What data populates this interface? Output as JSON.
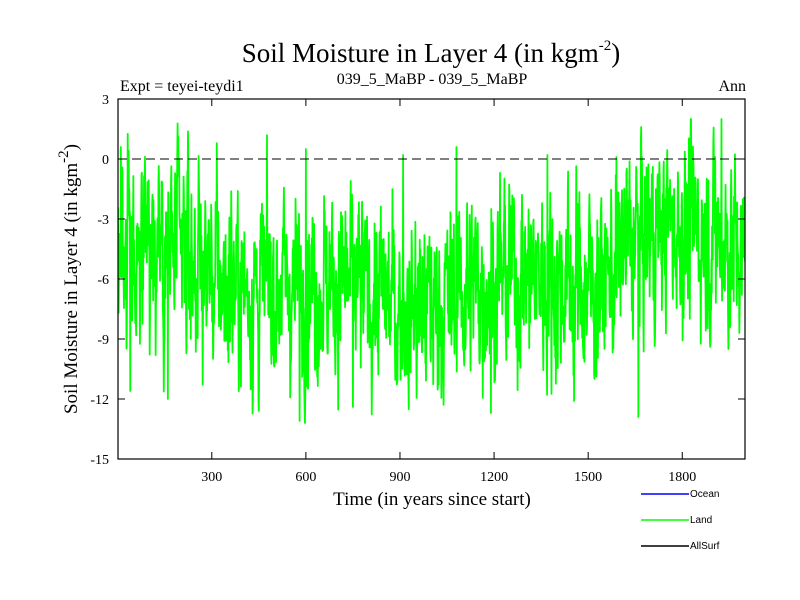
{
  "chart_data": {
    "type": "line",
    "title": "Soil Moisture in Layer 4 (in kgm",
    "title_sup": "-2",
    "title_close": ")",
    "subtitle_left": "Expt = teyei-teydi1",
    "subtitle_center": "039_5_MaBP - 039_5_MaBP",
    "subtitle_right": "Ann",
    "xlabel": "Time (in years since start)",
    "ylabel": "Soil Moisture in Layer 4 (in kgm",
    "ylabel_sup": "-2",
    "ylabel_close": ")",
    "xlim": [
      1,
      2000
    ],
    "ylim": [
      -15,
      3
    ],
    "xticks": [
      300,
      600,
      900,
      1200,
      1500,
      1800
    ],
    "yticks": [
      3,
      0,
      -3,
      -6,
      -9,
      -12,
      -15
    ],
    "zero_line": 0,
    "series": [
      {
        "name": "Land",
        "color": "#00ff00",
        "n_points": 2000,
        "generator": {
          "mean": -6.0,
          "amplitude": 2.6,
          "min": -13.2,
          "max": 2.0,
          "seed": 39
        },
        "anchors": [
          {
            "x": 10,
            "y": 0.6
          },
          {
            "x": 40,
            "y": -11.6
          },
          {
            "x": 160,
            "y": -12.0
          },
          {
            "x": 450,
            "y": -12.6
          },
          {
            "x": 580,
            "y": -13.1
          },
          {
            "x": 600,
            "y": 0.5
          },
          {
            "x": 750,
            "y": -12.4
          },
          {
            "x": 910,
            "y": 0.2
          },
          {
            "x": 1080,
            "y": 0.6
          },
          {
            "x": 1190,
            "y": -12.7
          },
          {
            "x": 1370,
            "y": 0.2
          },
          {
            "x": 1455,
            "y": -12.1
          },
          {
            "x": 1590,
            "y": 0.1
          },
          {
            "x": 1660,
            "y": -12.9
          },
          {
            "x": 1905,
            "y": 0.1
          },
          {
            "x": 1925,
            "y": 2.0
          },
          {
            "x": 1990,
            "y": -6.8
          }
        ]
      }
    ],
    "legend": [
      {
        "label": "Ocean",
        "color": "#0000ff"
      },
      {
        "label": "Land",
        "color": "#00ff00"
      },
      {
        "label": "AllSurf",
        "color": "#000000"
      }
    ]
  }
}
